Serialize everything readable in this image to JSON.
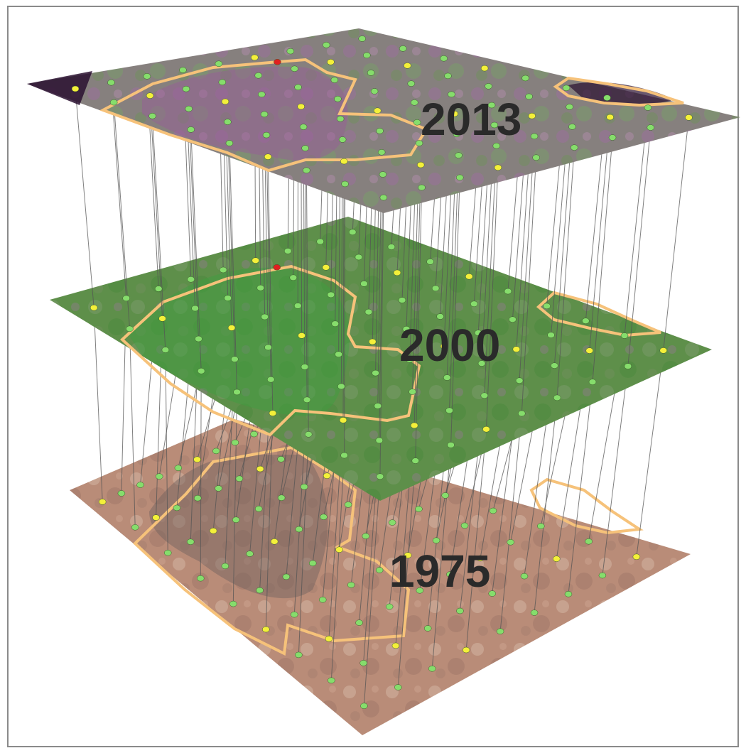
{
  "layers": [
    {
      "year": "1975",
      "tint": "#b98c78",
      "tint_dark": "#8f6a5c",
      "tint_light": "#d8c0b0"
    },
    {
      "year": "2000",
      "tint": "#5e8f4a",
      "tint_dark": "#3f7a3a",
      "tint_light": "#8fa77a"
    },
    {
      "year": "2013",
      "tint": "#8a7a86",
      "tint_dark": "#6a4f72",
      "tint_light": "#9aa886"
    }
  ],
  "colors": {
    "boundary": "#f6c27a",
    "point_green": "#86dd6c",
    "point_yellow": "#f4f03a",
    "point_red": "#e02020",
    "connector": "#555555",
    "frame": "#8a8a8a"
  }
}
